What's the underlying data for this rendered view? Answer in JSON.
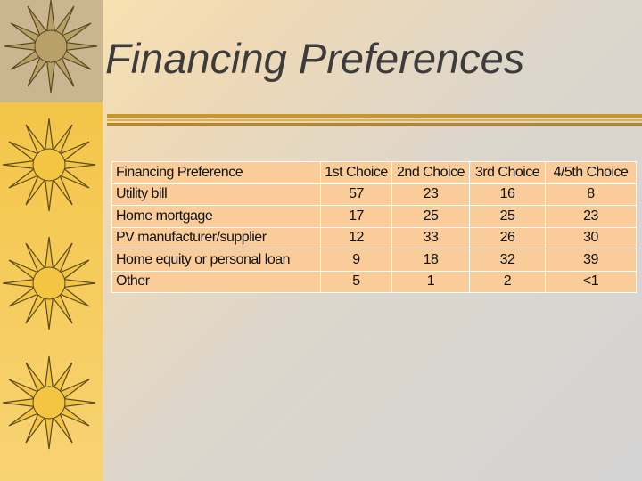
{
  "title": "Financing Preferences",
  "table": {
    "header": [
      "Financing Preference",
      "1st Choice",
      "2nd Choice",
      "3rd Choice",
      "4/5th Choice"
    ],
    "rows": [
      [
        "Utility bill",
        57,
        23,
        16,
        8
      ],
      [
        "Home mortgage",
        17,
        25,
        25,
        23
      ],
      [
        "PV manufacturer/supplier",
        12,
        33,
        26,
        30
      ],
      [
        "Home equity or personal loan",
        9,
        18,
        32,
        39
      ],
      [
        "Other",
        5,
        1,
        2,
        "<1"
      ]
    ]
  }
}
